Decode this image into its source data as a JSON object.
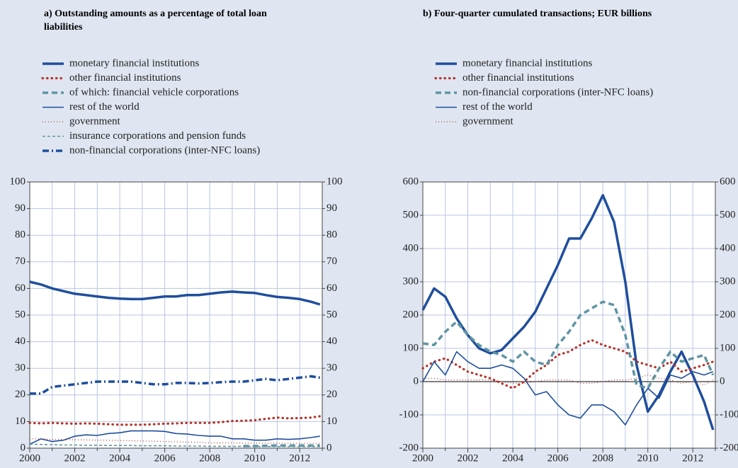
{
  "chart_data": [
    {
      "type": "line",
      "title": "a) Outstanding amounts as a percentage of total loan liabilities",
      "x": [
        2000,
        2000.5,
        2001,
        2001.5,
        2002,
        2002.5,
        2003,
        2003.5,
        2004,
        2004.5,
        2005,
        2005.5,
        2006,
        2006.5,
        2007,
        2007.5,
        2008,
        2008.5,
        2009,
        2009.5,
        2010,
        2010.5,
        2011,
        2011.5,
        2012,
        2012.5,
        2012.9
      ],
      "xlim": [
        2000,
        2013
      ],
      "xticks": [
        2000,
        2002,
        2004,
        2006,
        2008,
        2010,
        2012
      ],
      "minor_xticks": [
        2001,
        2003,
        2005,
        2007,
        2009,
        2011,
        2013
      ],
      "ylim": [
        0,
        100
      ],
      "yticks": [
        0,
        10,
        20,
        30,
        40,
        50,
        60,
        70,
        80,
        90,
        100
      ],
      "y2lim": [
        0,
        100
      ],
      "y2ticks": [
        0,
        10,
        20,
        30,
        40,
        50,
        60,
        70,
        80,
        90,
        100
      ],
      "grid": true,
      "series": [
        {
          "name": "monetary financial institutions",
          "color": "#1f4e9c",
          "style": "solid",
          "weight": "thick",
          "values": [
            62.5,
            61.5,
            60,
            59,
            58,
            57.5,
            57,
            56.5,
            56.2,
            56,
            56,
            56.5,
            57,
            57,
            57.5,
            57.5,
            58,
            58.5,
            58.8,
            58.5,
            58.3,
            57.5,
            56.8,
            56.5,
            56,
            55,
            54
          ]
        },
        {
          "name": "other financial institutions",
          "color": "#b5352a",
          "style": "dotted",
          "weight": "thick",
          "values": [
            9.5,
            9.3,
            9.5,
            9.3,
            9.2,
            9.3,
            9.2,
            9,
            8.8,
            8.8,
            8.8,
            9,
            9.2,
            9.3,
            9.5,
            9.5,
            9.5,
            9.8,
            10.2,
            10.3,
            10.5,
            11,
            11.5,
            11.2,
            11.3,
            11.5,
            12
          ]
        },
        {
          "name": "of which: financial vehicle corporations",
          "color": "#5f94a3",
          "style": "dashed",
          "weight": "thick",
          "values": [
            null,
            null,
            null,
            null,
            null,
            null,
            null,
            null,
            null,
            null,
            null,
            null,
            null,
            null,
            null,
            null,
            null,
            null,
            null,
            0.8,
            0.8,
            0.9,
            1,
            1,
            1,
            1,
            1
          ]
        },
        {
          "name": "rest of the world",
          "color": "#1f4e9c",
          "style": "solid",
          "weight": "thin",
          "values": [
            1.5,
            3.5,
            2.5,
            3,
            4.5,
            5,
            4.8,
            5.5,
            5.8,
            6.5,
            6.5,
            6.5,
            6.3,
            5.5,
            5.3,
            4.8,
            4.5,
            4.5,
            3.5,
            3.5,
            3,
            3,
            3.5,
            3.3,
            3.5,
            4,
            4.5
          ]
        },
        {
          "name": "government",
          "color": "#b5352a",
          "style": "dotted",
          "weight": "thin",
          "values": [
            3.5,
            3.5,
            3.3,
            3.2,
            3.2,
            3.1,
            3,
            3,
            2.9,
            2.8,
            2.7,
            2.6,
            2.5,
            2.4,
            2.3,
            2.2,
            2,
            2,
            2,
            1.9,
            1.9,
            1.9,
            1.8,
            1.8,
            1.8,
            1.8,
            1.8
          ]
        },
        {
          "name": "insurance corporations and pension funds",
          "color": "#5f94a3",
          "style": "dashed",
          "weight": "thin",
          "values": [
            1.5,
            1.4,
            1.3,
            1.2,
            1.2,
            1.1,
            1.1,
            1,
            1,
            1,
            0.9,
            0.9,
            0.9,
            0.8,
            0.8,
            0.8,
            0.7,
            0.7,
            0.7,
            0.7,
            0.6,
            0.6,
            0.6,
            0.6,
            0.6,
            0.6,
            0.6
          ]
        },
        {
          "name": "non-financial corporations (inter-NFC loans)",
          "color": "#1f4e9c",
          "style": "dashdot",
          "weight": "thick",
          "values": [
            20.5,
            20.5,
            23,
            23.5,
            24,
            24.5,
            25,
            25,
            25,
            25,
            24.5,
            24,
            24,
            24.5,
            24.5,
            24.3,
            24.5,
            24.8,
            25,
            25,
            25.5,
            26,
            25.5,
            26,
            26.5,
            27,
            26.5
          ]
        }
      ]
    },
    {
      "type": "line",
      "title": "b) Four-quarter cumulated transactions; EUR billions",
      "x": [
        2000,
        2000.5,
        2001,
        2001.5,
        2002,
        2002.5,
        2003,
        2003.5,
        2004,
        2004.5,
        2005,
        2005.5,
        2006,
        2006.5,
        2007,
        2007.5,
        2008,
        2008.5,
        2009,
        2009.5,
        2010,
        2010.5,
        2011,
        2011.5,
        2012,
        2012.5,
        2012.9
      ],
      "xlim": [
        2000,
        2013
      ],
      "xticks": [
        2000,
        2002,
        2004,
        2006,
        2008,
        2010,
        2012
      ],
      "minor_xticks": [
        2001,
        2003,
        2005,
        2007,
        2009,
        2011,
        2013
      ],
      "ylim": [
        -200,
        600
      ],
      "yticks": [
        -200,
        -100,
        0,
        100,
        200,
        300,
        400,
        500,
        600
      ],
      "y2lim": [
        -200,
        600
      ],
      "y2ticks": [
        -200,
        -100,
        0,
        100,
        200,
        300,
        400,
        500,
        600
      ],
      "grid": true,
      "series": [
        {
          "name": "monetary financial institutions",
          "color": "#1f4e9c",
          "style": "solid",
          "weight": "thick",
          "values": [
            215,
            280,
            255,
            190,
            140,
            100,
            85,
            95,
            130,
            165,
            210,
            280,
            350,
            430,
            430,
            490,
            560,
            480,
            300,
            50,
            -90,
            -40,
            30,
            90,
            20,
            -60,
            -145
          ]
        },
        {
          "name": "other financial institutions",
          "color": "#b5352a",
          "style": "dotted",
          "weight": "thick",
          "values": [
            40,
            60,
            70,
            50,
            30,
            20,
            10,
            -5,
            -20,
            0,
            30,
            50,
            80,
            90,
            110,
            125,
            110,
            100,
            90,
            60,
            50,
            40,
            60,
            30,
            40,
            50,
            60
          ]
        },
        {
          "name": "non-financial corporations (inter-NFC loans)",
          "color": "#5f94a3",
          "style": "dashed",
          "weight": "thick",
          "values": [
            115,
            110,
            150,
            180,
            140,
            110,
            90,
            80,
            60,
            90,
            60,
            50,
            110,
            150,
            200,
            220,
            240,
            230,
            140,
            -10,
            -20,
            40,
            90,
            60,
            70,
            80,
            20
          ]
        },
        {
          "name": "rest of the world",
          "color": "#1f4e9c",
          "style": "solid",
          "weight": "thin",
          "values": [
            0,
            60,
            20,
            90,
            60,
            40,
            40,
            50,
            40,
            10,
            -40,
            -30,
            -70,
            -100,
            -110,
            -70,
            -70,
            -90,
            -130,
            -70,
            -20,
            -50,
            20,
            10,
            30,
            20,
            30
          ]
        },
        {
          "name": "government",
          "color": "#b5352a",
          "style": "dotted",
          "weight": "thin",
          "values": [
            10,
            10,
            5,
            5,
            5,
            5,
            5,
            0,
            -5,
            -5,
            0,
            5,
            5,
            5,
            -5,
            -5,
            0,
            5,
            5,
            10,
            20,
            10,
            5,
            -5,
            0,
            -10,
            5
          ]
        }
      ]
    }
  ]
}
